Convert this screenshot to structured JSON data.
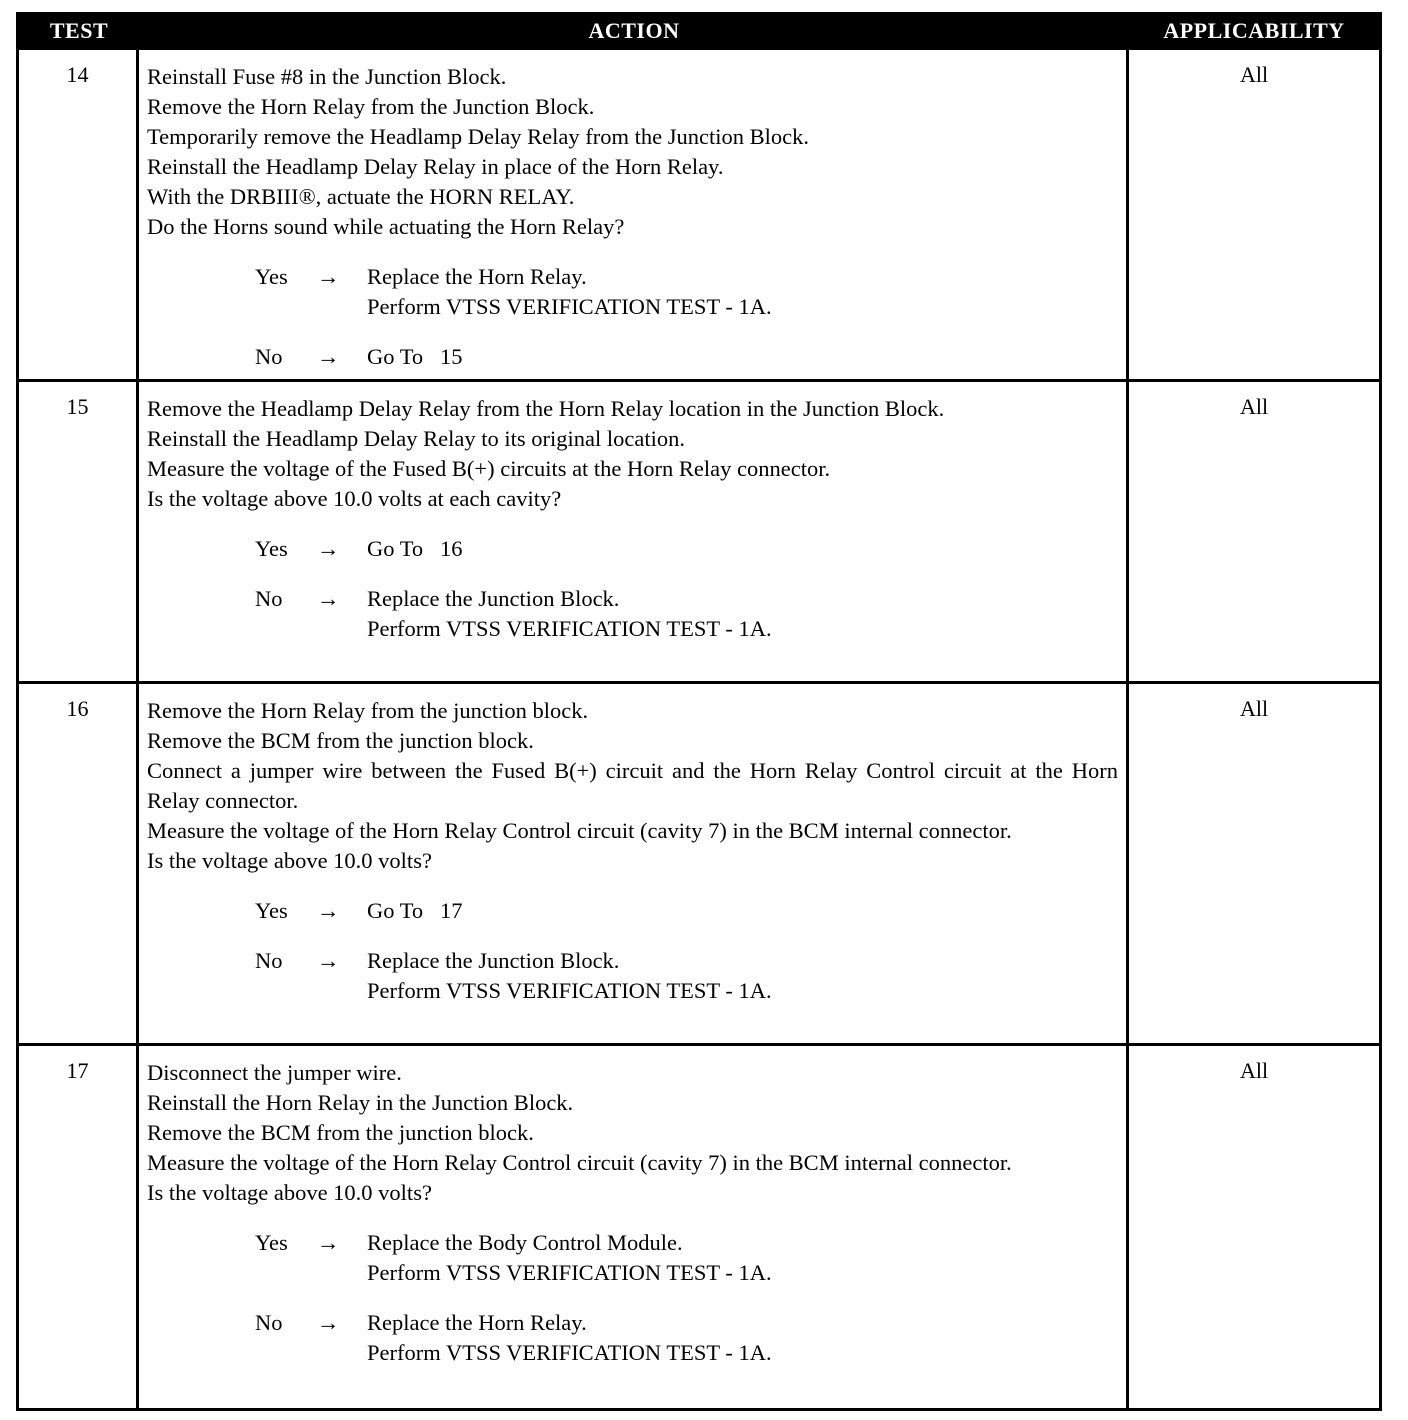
{
  "header": {
    "test": "TEST",
    "action": "ACTION",
    "applicability": "APPLICABILITY"
  },
  "rows": [
    {
      "test": "14",
      "applicability": "All",
      "lines": [
        "Reinstall Fuse #8 in the Junction Block.",
        "Remove the Horn Relay from the Junction Block.",
        "Temporarily remove the Headlamp Delay Relay from the Junction Block.",
        "Reinstall the Headlamp Delay Relay in place of the Horn Relay.",
        "With the DRBIII®, actuate the HORN RELAY.",
        "Do the Horns sound while actuating the Horn Relay?"
      ],
      "outcomes": [
        {
          "answer": "Yes",
          "arrow": "→",
          "result": [
            "Replace the Horn Relay.",
            "Perform VTSS VERIFICATION TEST - 1A."
          ]
        },
        {
          "answer": "No",
          "arrow": "→",
          "result": [
            "Go To   15"
          ]
        }
      ]
    },
    {
      "test": "15",
      "applicability": "All",
      "lines": [
        "Remove the Headlamp Delay Relay from the Horn Relay location in the Junction Block.",
        "Reinstall the Headlamp Delay Relay to its original location.",
        "Measure the voltage of the Fused B(+) circuits at the Horn Relay connector.",
        "Is the voltage above 10.0 volts at each cavity?"
      ],
      "outcomes": [
        {
          "answer": "Yes",
          "arrow": "→",
          "result": [
            "Go To   16"
          ]
        },
        {
          "answer": "No",
          "arrow": "→",
          "result": [
            "Replace the Junction Block.",
            "Perform VTSS VERIFICATION TEST - 1A."
          ]
        }
      ]
    },
    {
      "test": "16",
      "applicability": "All",
      "lines": [
        "Remove the Horn Relay from the junction block.",
        "Remove the BCM from the junction block.",
        "Connect a jumper wire between the Fused B(+) circuit and the Horn Relay Control circuit at the Horn Relay connector.",
        "Measure the voltage of the Horn Relay Control circuit (cavity 7) in the BCM internal connector.",
        "Is the voltage above 10.0 volts?"
      ],
      "outcomes": [
        {
          "answer": "Yes",
          "arrow": "→",
          "result": [
            "Go To   17"
          ]
        },
        {
          "answer": "No",
          "arrow": "→",
          "result": [
            "Replace the Junction Block.",
            "Perform VTSS VERIFICATION TEST - 1A."
          ]
        }
      ]
    },
    {
      "test": "17",
      "applicability": "All",
      "lines": [
        "Disconnect the jumper wire.",
        "Reinstall the Horn Relay in the Junction Block.",
        "Remove the BCM from the junction block.",
        "Measure the voltage of the Horn Relay Control circuit (cavity 7) in the BCM internal connector.",
        "Is the voltage above 10.0 volts?"
      ],
      "outcomes": [
        {
          "answer": "Yes",
          "arrow": "→",
          "result": [
            "Replace the Body Control Module.",
            "Perform VTSS VERIFICATION TEST - 1A."
          ]
        },
        {
          "answer": "No",
          "arrow": "→",
          "result": [
            "Replace the Horn Relay.",
            "Perform VTSS VERIFICATION TEST - 1A."
          ]
        }
      ]
    }
  ]
}
